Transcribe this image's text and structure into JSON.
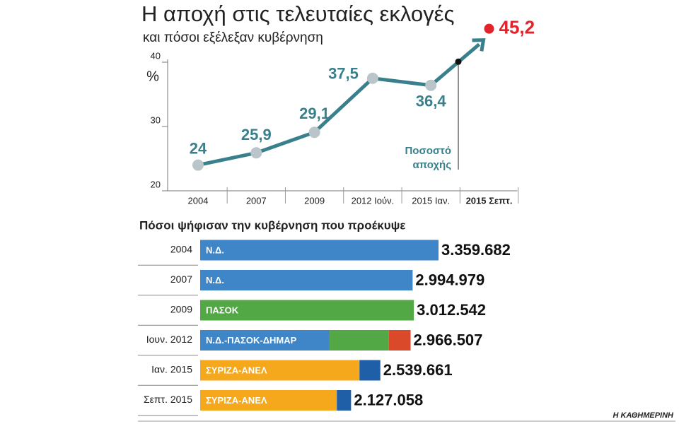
{
  "header": {
    "title": "Η αποχή στις τελευταίες εκλογές",
    "subtitle": "και πόσοι εξέλεξαν κυβέρνηση"
  },
  "chart_data": [
    {
      "type": "line",
      "y_label": "%",
      "categories": [
        "2004",
        "2007",
        "2009",
        "2012 Ιούν.",
        "2015 Ιαν."
      ],
      "values": [
        24,
        25.9,
        29.1,
        37.5,
        36.4
      ],
      "value_labels": [
        "24",
        "25,9",
        "29,1",
        "37,5",
        "36,4"
      ],
      "color": "#3a7f8c",
      "point_color": "#b9c5c9",
      "ylim": [
        20,
        40
      ],
      "yticks": [
        20,
        30,
        40
      ],
      "latest": {
        "category": "2015 Σεπτ.",
        "value": 45.2,
        "value_label": "45,2",
        "color": "#e3232b"
      },
      "annotation": [
        "Ποσοστό",
        "αποχής"
      ]
    },
    {
      "type": "stacked-bar",
      "title": "Πόσοι ψήφισαν την κυβέρνηση που προέκυψε",
      "rows": [
        {
          "year": "2004",
          "government": "Ν.Δ.",
          "segments": [
            {
              "value": 3359682,
              "color": "#3f86c8"
            }
          ],
          "total_label": "3.359.682"
        },
        {
          "year": "2007",
          "government": "Ν.Δ.",
          "segments": [
            {
              "value": 2994979,
              "color": "#3f86c8"
            }
          ],
          "total_label": "2.994.979"
        },
        {
          "year": "2009",
          "government": "ΠΑΣΟΚ",
          "segments": [
            {
              "value": 3012542,
              "color": "#53a846"
            }
          ],
          "total_label": "3.012.542"
        },
        {
          "year": "Ιουν. 2012",
          "government": "Ν.Δ.-ΠΑΣΟΚ-ΔΗΜΑΡ",
          "segments": [
            {
              "value": 1825497,
              "color": "#3f86c8"
            },
            {
              "value": 833529,
              "color": "#53a846"
            },
            {
              "value": 307481,
              "color": "#d9492a"
            }
          ],
          "total_label": "2.966.507"
        },
        {
          "year": "Ιαν. 2015",
          "government": "ΣΥΡΙΖΑ-ΑΝΕΛ",
          "segments": [
            {
              "value": 2245978,
              "color": "#f5a81c"
            },
            {
              "value": 293683,
              "color": "#1f5fa8"
            }
          ],
          "total_label": "2.539.661"
        },
        {
          "year": "Σεπτ. 2015",
          "government": "ΣΥΡΙΖΑ-ΑΝΕΛ",
          "segments": [
            {
              "value": 1926526,
              "color": "#f5a81c"
            },
            {
              "value": 200532,
              "color": "#1f5fa8"
            }
          ],
          "total_label": "2.127.058"
        }
      ]
    }
  ],
  "footer": {
    "source": "Η ΚΑΘΗΜΕΡΙΝΗ"
  }
}
